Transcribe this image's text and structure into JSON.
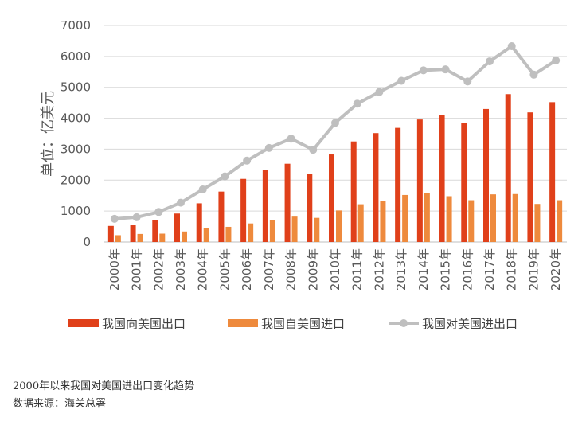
{
  "chart_data": {
    "type": "bar",
    "ylabel": "单位：亿美元",
    "ylim": [
      0,
      7000
    ],
    "yticks": [
      "0",
      "1000",
      "2000",
      "3000",
      "4000",
      "5000",
      "6000",
      "7000"
    ],
    "grid": true,
    "legend_position": "bottom",
    "categories": [
      "2000年",
      "2001年",
      "2002年",
      "2003年",
      "2004年",
      "2005年",
      "2006年",
      "2007年",
      "2008年",
      "2009年",
      "2010年",
      "2011年",
      "2012年",
      "2013年",
      "2014年",
      "2015年",
      "2016年",
      "2017年",
      "2018年",
      "2019年",
      "2020年"
    ],
    "series": [
      {
        "name": "我国向美国出口",
        "type": "bar",
        "color": "#E0401A",
        "values": [
          520,
          540,
          700,
          920,
          1250,
          1630,
          2040,
          2330,
          2530,
          2210,
          2830,
          3250,
          3520,
          3690,
          3960,
          4100,
          3850,
          4300,
          4780,
          4190,
          4520
        ]
      },
      {
        "name": "我国自美国进口",
        "type": "bar",
        "color": "#EE8A3D",
        "values": [
          220,
          260,
          270,
          340,
          450,
          490,
          600,
          700,
          820,
          780,
          1020,
          1220,
          1330,
          1520,
          1590,
          1480,
          1350,
          1540,
          1550,
          1230,
          1350
        ]
      },
      {
        "name": "我国对美国进出口",
        "type": "line",
        "color": "#BFBFBF",
        "values": [
          750,
          800,
          970,
          1270,
          1700,
          2120,
          2630,
          3040,
          3340,
          2980,
          3850,
          4470,
          4850,
          5210,
          5550,
          5580,
          5190,
          5840,
          6330,
          5410,
          5870
        ]
      }
    ]
  },
  "caption": {
    "title": "2000年以来我国对美国进出口变化趋势",
    "source": "数据来源：海关总署"
  }
}
